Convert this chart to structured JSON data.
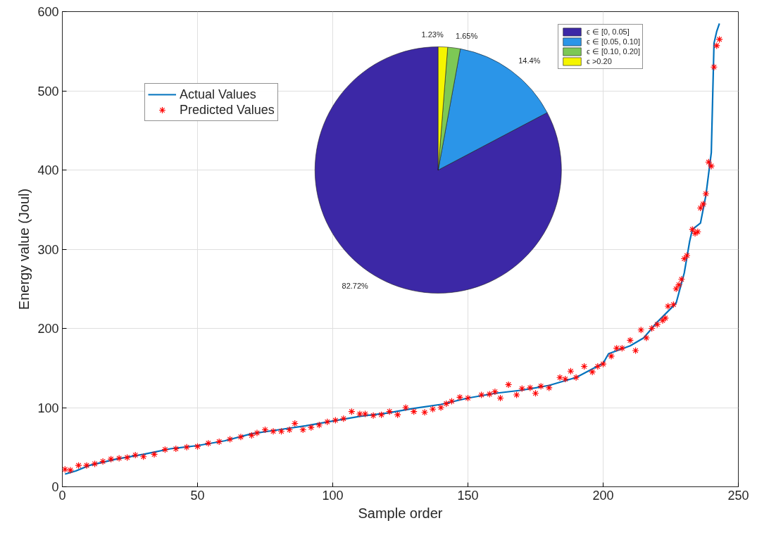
{
  "chart_data": [
    {
      "type": "line",
      "xlabel": "Sample order",
      "ylabel": "Energy value (Joul)",
      "xlim": [
        0,
        250
      ],
      "ylim": [
        0,
        600
      ],
      "xticks": [
        0,
        50,
        100,
        150,
        200,
        250
      ],
      "yticks": [
        0,
        100,
        200,
        300,
        400,
        500,
        600
      ],
      "grid": true,
      "legend": "top left",
      "series": [
        {
          "name": "Actual Values",
          "type": "line",
          "color": "#0072bd",
          "line_style": "solid",
          "x": [
            1,
            5,
            10,
            20,
            30,
            40,
            50,
            60,
            70,
            80,
            90,
            100,
            110,
            120,
            130,
            140,
            150,
            160,
            170,
            180,
            190,
            200,
            202,
            210,
            215,
            220,
            225,
            227,
            230,
            232,
            233,
            236,
            238,
            240,
            241,
            242,
            243
          ],
          "values": [
            16,
            20,
            27,
            35,
            41,
            48,
            52,
            58,
            67,
            72,
            77,
            83,
            89,
            93,
            99,
            104,
            112,
            118,
            122,
            128,
            138,
            156,
            168,
            178,
            188,
            208,
            225,
            232,
            270,
            310,
            325,
            333,
            368,
            422,
            560,
            575,
            585
          ]
        },
        {
          "name": "Predicted Values",
          "type": "scatter",
          "marker": "cross",
          "color": "#ff0000",
          "x": [
            1,
            3,
            6,
            9,
            12,
            15,
            18,
            21,
            24,
            27,
            30,
            34,
            38,
            42,
            46,
            50,
            54,
            58,
            62,
            66,
            70,
            72,
            75,
            78,
            81,
            84,
            86,
            89,
            92,
            95,
            98,
            101,
            104,
            107,
            110,
            112,
            115,
            118,
            121,
            124,
            127,
            130,
            134,
            137,
            140,
            142,
            144,
            147,
            150,
            155,
            158,
            160,
            162,
            165,
            168,
            170,
            173,
            175,
            177,
            180,
            184,
            186,
            188,
            190,
            193,
            196,
            198,
            200,
            203,
            205,
            207,
            210,
            212,
            214,
            216,
            218,
            220,
            222,
            223,
            224,
            226,
            227,
            228,
            229,
            230,
            231,
            233,
            234,
            235,
            236,
            237,
            238,
            239,
            240,
            241,
            242,
            243
          ],
          "values": [
            22,
            21,
            27,
            27,
            29,
            32,
            35,
            36,
            37,
            40,
            38,
            41,
            47,
            48,
            50,
            51,
            55,
            57,
            60,
            63,
            65,
            68,
            72,
            70,
            70,
            72,
            80,
            72,
            75,
            78,
            82,
            84,
            86,
            95,
            92,
            92,
            90,
            91,
            95,
            91,
            100,
            95,
            94,
            98,
            100,
            105,
            108,
            113,
            112,
            116,
            117,
            120,
            112,
            129,
            116,
            124,
            125,
            118,
            127,
            125,
            138,
            136,
            146,
            138,
            152,
            145,
            152,
            155,
            165,
            175,
            175,
            185,
            172,
            198,
            188,
            200,
            205,
            210,
            213,
            228,
            230,
            250,
            255,
            262,
            288,
            292,
            325,
            320,
            322,
            352,
            357,
            370,
            410,
            405,
            530,
            557,
            565
          ]
        }
      ]
    },
    {
      "type": "pie",
      "categories": [
        "ϵ ∈ [0, 0.05]",
        "ϵ ∈ [0.05, 0.10]",
        "ϵ ∈ [0.10, 0.20]",
        "ϵ >0.20"
      ],
      "values": [
        82.72,
        14.4,
        1.65,
        1.23
      ],
      "colors": [
        "#3c28a6",
        "#2b95e8",
        "#7dc855",
        "#f5f500"
      ],
      "value_labels": [
        "82.72%",
        "14.4%",
        "1.65%",
        "1.23%"
      ],
      "legend": "top right"
    }
  ]
}
